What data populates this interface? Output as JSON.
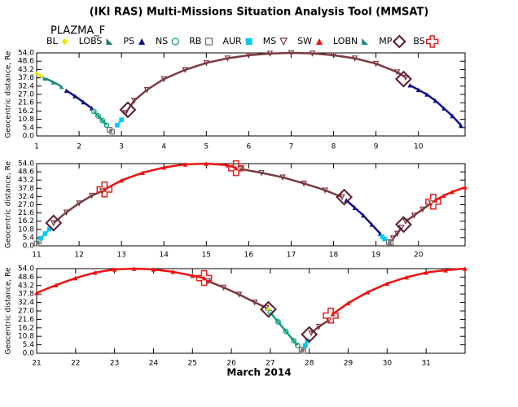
{
  "header": {
    "title": "(IKI RAS) Multi-Missions Situation Analysis Tool (MMSAT)",
    "subtitle": "PLAZMA_F",
    "xlabel": "March 2014",
    "legend": [
      {
        "name": "BL",
        "color": "#e8e800",
        "marker": "diamond"
      },
      {
        "name": "LOBS",
        "color": "#207878",
        "marker": "wedge"
      },
      {
        "name": "PS",
        "color": "#10108c",
        "marker": "triangle"
      },
      {
        "name": "NS",
        "color": "#10a080",
        "marker": "circle"
      },
      {
        "name": "RB",
        "color": "#707070",
        "marker": "square-open"
      },
      {
        "name": "AUR",
        "color": "#00c8f0",
        "marker": "square"
      },
      {
        "name": "MS",
        "color": "#7a3a40",
        "marker": "tridown"
      },
      {
        "name": "SW",
        "color": "#f01010",
        "marker": "triangle"
      },
      {
        "name": "LOBN",
        "color": "#208888",
        "marker": "wedge"
      },
      {
        "name": "MP",
        "color": "#5a1a30",
        "marker": "diamond-big"
      },
      {
        "name": "BS",
        "color": "#e02020",
        "marker": "cross"
      }
    ]
  },
  "chart_data": [
    {
      "type": "scatter",
      "ylabel": "Geocentric distance, Re",
      "xlim": [
        1,
        11.1
      ],
      "ylim": [
        0,
        54
      ],
      "xticks": [
        1,
        2,
        3,
        4,
        5,
        6,
        7,
        8,
        9,
        10
      ],
      "yticks": [
        {
          "value": 0,
          "label": "0.0"
        },
        5.4,
        10.8,
        16.2,
        21.6,
        {
          "value": 27,
          "label": "27.0"
        },
        32.4,
        37.8,
        43.2,
        48.6,
        {
          "value": 54,
          "label": "54.0"
        }
      ],
      "series": [
        {
          "name": "BL",
          "x": [
            1.0,
            1.1
          ],
          "values": [
            40.5,
            39
          ]
        },
        {
          "name": "LOBN",
          "x": [
            1.2,
            1.4,
            1.6
          ],
          "values": [
            37.5,
            35,
            32
          ]
        },
        {
          "name": "PS",
          "x": [
            1.7,
            1.9,
            2.1,
            2.3
          ],
          "values": [
            29.5,
            26,
            22,
            18
          ]
        },
        {
          "name": "NS",
          "x": [
            2.35,
            2.45,
            2.55,
            2.65
          ],
          "values": [
            16,
            13,
            10,
            7
          ]
        },
        {
          "name": "RB",
          "x": [
            2.72,
            2.78
          ],
          "values": [
            4,
            2.7
          ]
        },
        {
          "name": "AUR",
          "x": [
            2.9,
            3.0
          ],
          "values": [
            7,
            10.5
          ]
        },
        {
          "name": "MS",
          "x": [
            3.1,
            3.3,
            3.6,
            4,
            4.5,
            5,
            5.5,
            6,
            6.5,
            7,
            7.5,
            8,
            8.5,
            9,
            9.5,
            9.7
          ],
          "values": [
            15,
            23,
            30,
            37,
            43,
            47.5,
            50.5,
            52.5,
            53.6,
            54,
            53.7,
            52.5,
            50.5,
            47,
            41.5,
            38
          ]
        },
        {
          "name": "PS",
          "x": [
            9.8,
            10,
            10.2,
            10.4,
            10.6,
            10.8,
            11
          ],
          "values": [
            33,
            30,
            27,
            23,
            18,
            13,
            7
          ]
        },
        {
          "name": "MP",
          "x": [
            3.15,
            9.65
          ],
          "values": [
            17,
            37
          ]
        }
      ]
    },
    {
      "type": "scatter",
      "ylabel": "Geocentric distance, Re",
      "xlim": [
        11,
        21.1
      ],
      "ylim": [
        0,
        54
      ],
      "xticks": [
        11,
        12,
        13,
        14,
        15,
        16,
        17,
        18,
        19,
        20
      ],
      "yticks": [
        {
          "value": 0,
          "label": "0.0"
        },
        5.4,
        10.8,
        16.2,
        21.6,
        {
          "value": 27,
          "label": "27.0"
        },
        32.4,
        37.8,
        43.2,
        48.6,
        {
          "value": 54,
          "label": "54.0"
        }
      ],
      "series": [
        {
          "name": "RB",
          "x": [
            11.0,
            11.05
          ],
          "values": [
            1.5,
            3
          ]
        },
        {
          "name": "AUR",
          "x": [
            11.1,
            11.2,
            11.3
          ],
          "values": [
            5,
            8,
            11
          ]
        },
        {
          "name": "MS",
          "x": [
            11.4,
            11.7,
            12,
            12.3,
            12.55
          ],
          "values": [
            15,
            22,
            28,
            33,
            36
          ]
        },
        {
          "name": "SW",
          "x": [
            12.6,
            13,
            13.5,
            14,
            14.5,
            15,
            15.5,
            15.7
          ],
          "values": [
            37,
            43,
            48,
            51.5,
            53.5,
            54,
            53,
            51
          ]
        },
        {
          "name": "MS",
          "x": [
            15.8,
            16.3,
            16.8,
            17.3,
            17.8,
            18.2
          ],
          "values": [
            50.5,
            48,
            45,
            41,
            36.5,
            32
          ]
        },
        {
          "name": "PS",
          "x": [
            18.3,
            18.5,
            18.7,
            18.9,
            19.1
          ],
          "values": [
            30,
            25,
            20,
            14,
            8
          ]
        },
        {
          "name": "AUR",
          "x": [
            19.15,
            19.2
          ],
          "values": [
            6,
            4.5
          ]
        },
        {
          "name": "RB",
          "x": [
            19.3,
            19.35
          ],
          "values": [
            2.5,
            2
          ]
        },
        {
          "name": "MS",
          "x": [
            19.4,
            19.5,
            19.6
          ],
          "values": [
            5,
            8,
            12
          ]
        },
        {
          "name": "MS",
          "x": [
            19.7,
            19.9,
            20.1,
            20.3
          ],
          "values": [
            16,
            20,
            24,
            28
          ]
        },
        {
          "name": "SW",
          "x": [
            20.4,
            20.6,
            20.8,
            21.1
          ],
          "values": [
            30,
            33,
            35.5,
            38.5
          ]
        },
        {
          "name": "MP",
          "x": [
            11.4,
            18.25,
            19.65
          ],
          "values": [
            15,
            32,
            14
          ]
        },
        {
          "name": "BS",
          "x": [
            12.6,
            15.7,
            20.35
          ],
          "values": [
            37,
            51,
            29
          ]
        }
      ]
    },
    {
      "type": "scatter",
      "ylabel": "Geocentric distance, Re",
      "xlim": [
        21,
        32
      ],
      "ylim": [
        0,
        54
      ],
      "xticks": [
        21,
        22,
        23,
        24,
        25,
        26,
        27,
        28,
        29,
        30,
        31
      ],
      "yticks": [
        {
          "value": 0,
          "label": "0.0"
        },
        5.4,
        10.8,
        16.2,
        21.6,
        {
          "value": 27,
          "label": "27.0"
        },
        32.4,
        37.8,
        43.2,
        48.6,
        {
          "value": 54,
          "label": "54.0"
        }
      ],
      "series": [
        {
          "name": "SW",
          "x": [
            21,
            21.5,
            22,
            22.5,
            23,
            23.5,
            24,
            24.5,
            25,
            25.3
          ],
          "values": [
            38.5,
            43.5,
            48,
            51.5,
            53.5,
            54,
            53.5,
            52,
            49.5,
            48
          ]
        },
        {
          "name": "MS",
          "x": [
            25.4,
            25.8,
            26.2,
            26.6,
            26.9
          ],
          "values": [
            46,
            42,
            37.5,
            32.5,
            29
          ]
        },
        {
          "name": "BL",
          "x": [
            26.95
          ],
          "values": [
            28
          ]
        },
        {
          "name": "NS",
          "x": [
            27.0,
            27.2,
            27.4,
            27.6,
            27.7
          ],
          "values": [
            26,
            20,
            14,
            8,
            5
          ]
        },
        {
          "name": "RB",
          "x": [
            27.8,
            27.85
          ],
          "values": [
            2.5,
            1.5
          ]
        },
        {
          "name": "AUR",
          "x": [
            27.9,
            27.95
          ],
          "values": [
            5,
            8
          ]
        },
        {
          "name": "MS",
          "x": [
            28.05,
            28.25,
            28.5
          ],
          "values": [
            13,
            17,
            21
          ]
        },
        {
          "name": "SW",
          "x": [
            28.6,
            29,
            29.5,
            30,
            30.5,
            31,
            31.5,
            32
          ],
          "values": [
            25,
            32,
            39,
            44.5,
            48.5,
            51.5,
            53,
            54
          ]
        },
        {
          "name": "MP",
          "x": [
            26.95,
            28.0
          ],
          "values": [
            28,
            12
          ]
        },
        {
          "name": "BS",
          "x": [
            25.3,
            28.55
          ],
          "values": [
            48,
            24
          ]
        }
      ]
    }
  ]
}
